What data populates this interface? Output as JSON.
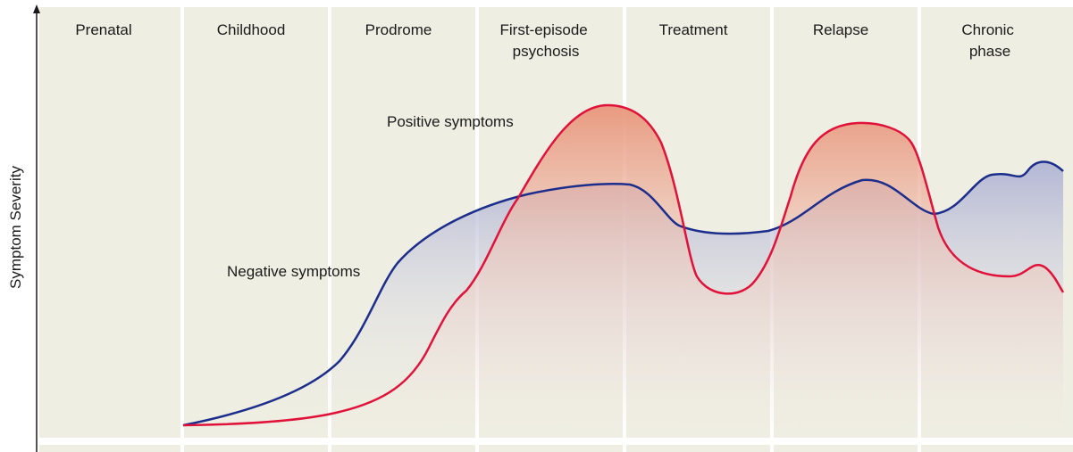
{
  "diagram": {
    "y_axis_label": "Symptom Severity",
    "phases": [
      {
        "label": [
          "Prenatal"
        ]
      },
      {
        "label": [
          "Childhood"
        ]
      },
      {
        "label": [
          "Prodrome"
        ]
      },
      {
        "label": [
          "First-episode",
          "psychosis"
        ]
      },
      {
        "label": [
          "Treatment"
        ]
      },
      {
        "label": [
          "Relapse"
        ]
      },
      {
        "label": [
          "Chronic",
          "phase"
        ]
      }
    ],
    "curves": {
      "positive": {
        "label": "Positive symptoms",
        "color": "#e0123a"
      },
      "negative": {
        "label": "Negative symptoms",
        "color": "#1c2d8c"
      }
    },
    "colors": {
      "panel": "#efeee2",
      "panel_divider": "#ffffff",
      "positive_fill_top": "#e8957a",
      "negative_fill_top": "#a9aed2"
    }
  }
}
